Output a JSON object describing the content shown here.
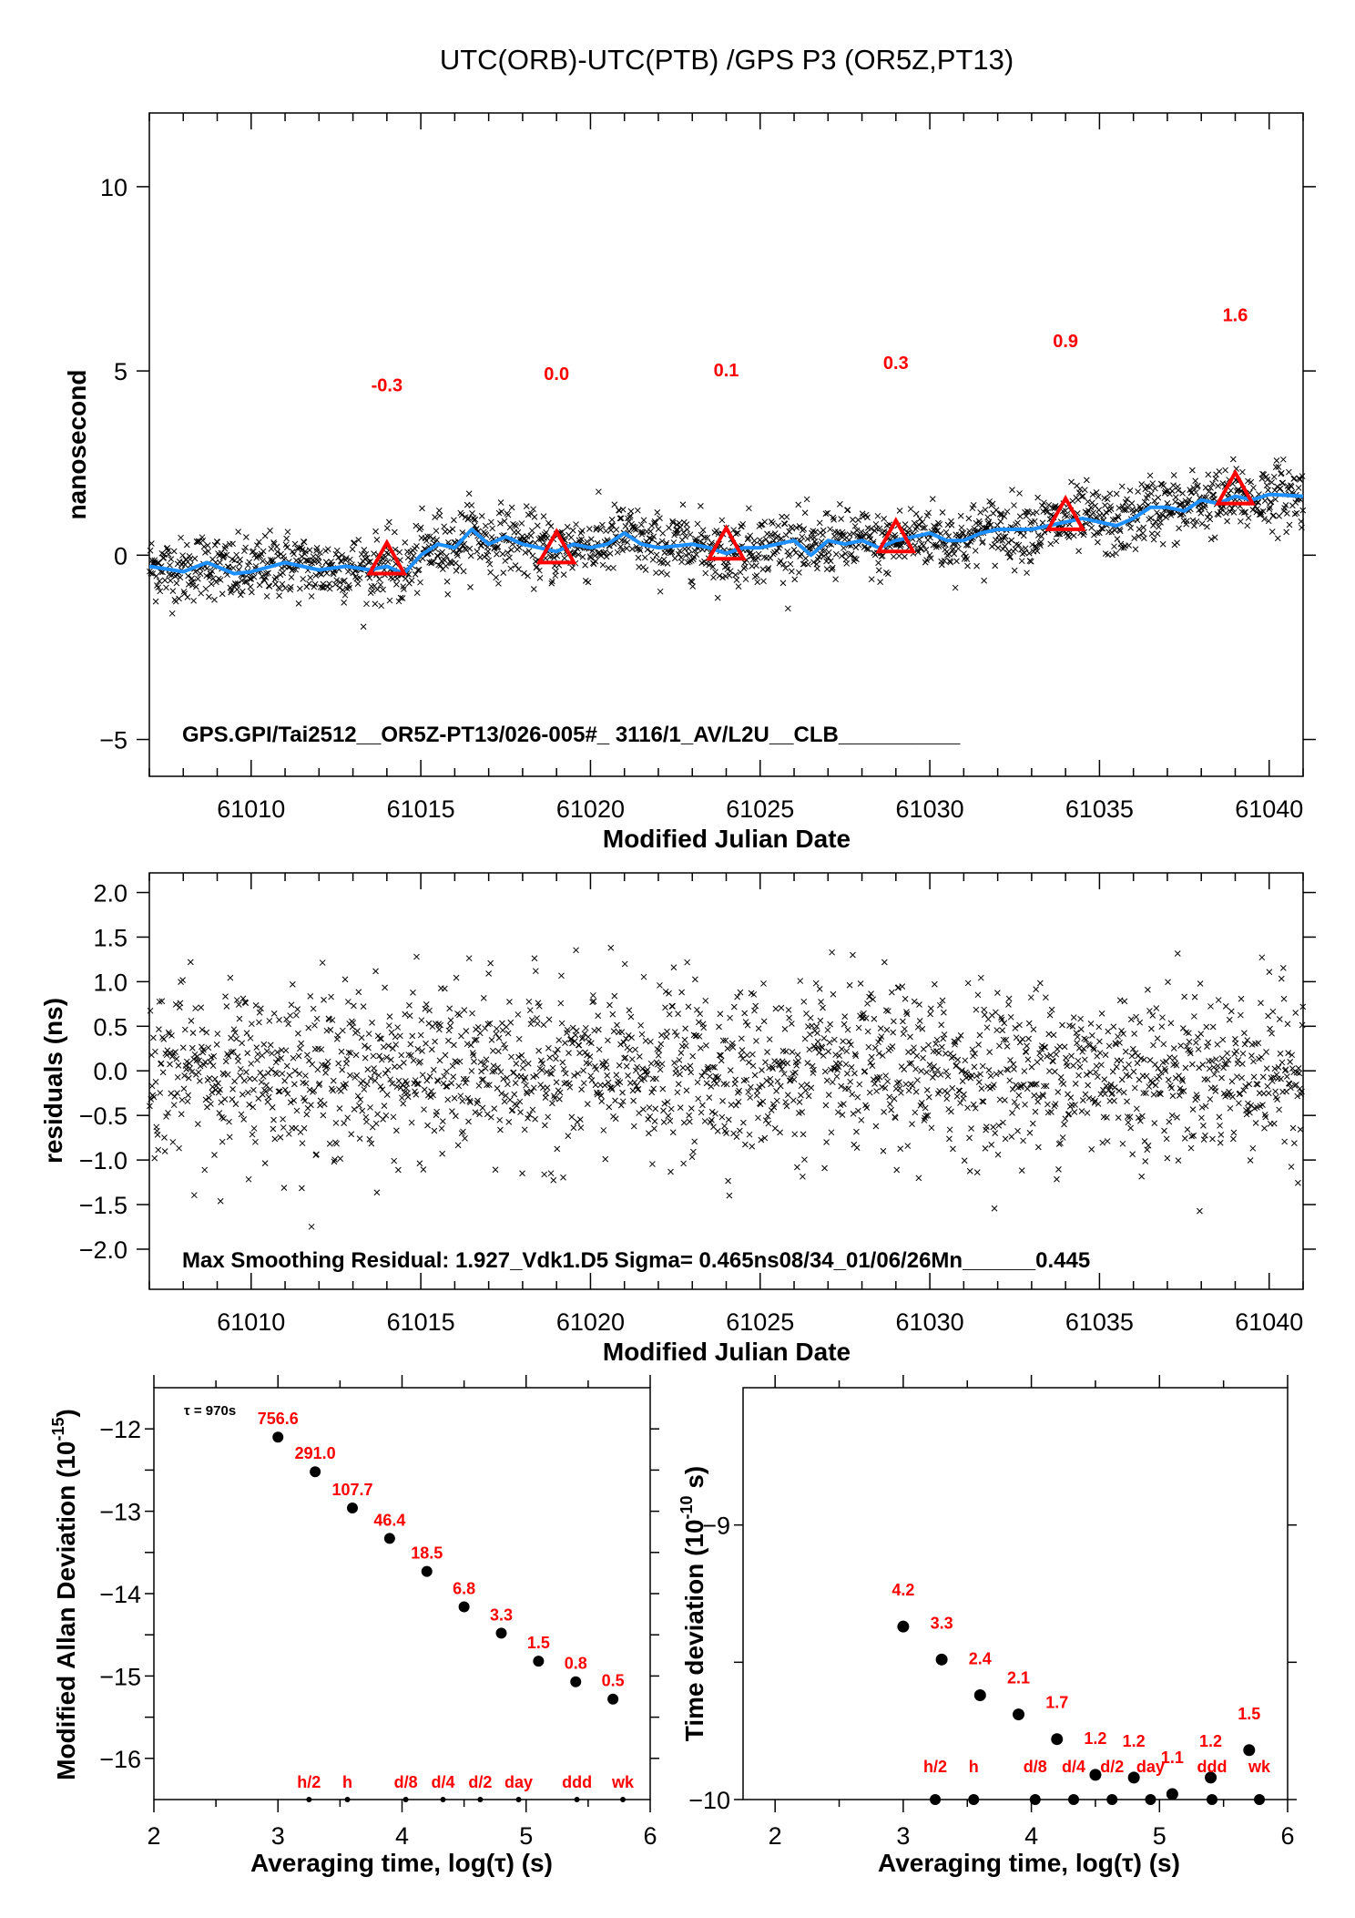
{
  "chart_data": [
    {
      "type": "scatter",
      "title": "UTC(ORB)-UTC(PTB)  /GPS  P3  (OR5Z,PT13)",
      "xlabel": "Modified Julian Date",
      "ylabel": "nanosecond",
      "xlim": [
        61007,
        61041
      ],
      "ylim": [
        -6,
        12
      ],
      "xticks": [
        "61010",
        "61015",
        "61020",
        "61025",
        "61030",
        "61035",
        "61040"
      ],
      "yticks": [
        "10",
        "5",
        "0",
        "−5"
      ],
      "annotation": "GPS.GPI/Tai2512__OR5Z-PT13/026-005#_  3116/1_AV/L2U__CLB__________",
      "noise_sigma_ns": 0.45,
      "smoothed_series": {
        "color": "#1e8fff",
        "x": [
          61007,
          61008,
          61008.7,
          61009.5,
          61010,
          61011,
          61012,
          61012.8,
          61013.5,
          61014,
          61014.5,
          61015,
          61015.5,
          61016,
          61016.5,
          61017,
          61017.5,
          61018,
          61019,
          61019.5,
          61020,
          61020.5,
          61021,
          61021.5,
          61022,
          61023,
          61023.5,
          61024,
          61024.5,
          61025,
          61026,
          61026.5,
          61027,
          61027.5,
          61028,
          61028.5,
          61029,
          61030,
          61030.5,
          61031,
          61031.5,
          61032,
          61033,
          61034,
          61034.5,
          61035,
          61035.5,
          61036,
          61036.5,
          61037,
          61037.5,
          61038,
          61038.5,
          61039,
          61039.5,
          61040,
          61041
        ],
        "y": [
          -0.3,
          -0.45,
          -0.2,
          -0.5,
          -0.45,
          -0.2,
          -0.4,
          -0.3,
          -0.4,
          -0.3,
          -0.5,
          0.0,
          0.3,
          0.2,
          0.7,
          0.3,
          0.5,
          0.3,
          0.1,
          0.3,
          0.2,
          0.3,
          0.6,
          0.3,
          0.2,
          0.3,
          0.2,
          0.05,
          0.2,
          0.2,
          0.4,
          0.0,
          0.4,
          0.3,
          0.4,
          0.2,
          0.4,
          0.6,
          0.4,
          0.4,
          0.6,
          0.7,
          0.7,
          0.9,
          1.0,
          0.9,
          0.8,
          1.0,
          1.3,
          1.3,
          1.2,
          1.5,
          1.4,
          1.6,
          1.5,
          1.65,
          1.6
        ]
      },
      "markers": [
        {
          "x": 61014,
          "y": -0.3,
          "label": "-0.3"
        },
        {
          "x": 61019,
          "y": 0.0,
          "label": "0.0"
        },
        {
          "x": 61024,
          "y": 0.1,
          "label": "0.1"
        },
        {
          "x": 61029,
          "y": 0.3,
          "label": "0.3"
        },
        {
          "x": 61034,
          "y": 0.9,
          "label": "0.9"
        },
        {
          "x": 61039,
          "y": 1.6,
          "label": "1.6"
        }
      ],
      "marker_color": "#ff0000"
    },
    {
      "type": "scatter",
      "xlabel": "Modified Julian Date",
      "ylabel": "residuals (ns)",
      "xlim": [
        61007,
        61041
      ],
      "ylim": [
        -2.45,
        2.22
      ],
      "xticks": [
        "61010",
        "61015",
        "61020",
        "61025",
        "61030",
        "61035",
        "61040"
      ],
      "yticks": [
        "2.0",
        "1.5",
        "1.0",
        "0.5",
        "0.0",
        "−0.5",
        "−1.0",
        "−1.5",
        "−2.0"
      ],
      "annotation": "Max Smoothing Residual: 1.927_Vdk1.D5  Sigma= 0.465ns08/34_01/06/26Mn______0.445",
      "noise_sigma_ns": 0.465
    },
    {
      "type": "scatter",
      "xlabel": "Averaging time, log(τ) (s)",
      "ylabel": "Modified Allan Deviation (10",
      "ylabel_exp": "-15",
      "ylabel_end": ")",
      "xlim": [
        2,
        6
      ],
      "ylim": [
        -16.5,
        -11.5
      ],
      "xticks": [
        "2",
        "3",
        "4",
        "5",
        "6"
      ],
      "yticks": [
        "−12",
        "−13",
        "−14",
        "−15",
        "−16"
      ],
      "tau_note": "τ = 970s",
      "points": [
        {
          "x": 3.0,
          "y": -12.1,
          "label": "756.6"
        },
        {
          "x": 3.3,
          "y": -12.52,
          "label": "291.0"
        },
        {
          "x": 3.6,
          "y": -12.96,
          "label": "107.7"
        },
        {
          "x": 3.9,
          "y": -13.33,
          "label": "46.4"
        },
        {
          "x": 4.2,
          "y": -13.73,
          "label": "18.5"
        },
        {
          "x": 4.5,
          "y": -14.16,
          "label": "6.8"
        },
        {
          "x": 4.8,
          "y": -14.48,
          "label": "3.3"
        },
        {
          "x": 5.1,
          "y": -14.82,
          "label": "1.5"
        },
        {
          "x": 5.4,
          "y": -15.07,
          "label": "0.8"
        },
        {
          "x": 5.7,
          "y": -15.28,
          "label": "0.5"
        }
      ],
      "interval_marks": [
        {
          "x": 3.25,
          "label": "h/2"
        },
        {
          "x": 3.56,
          "label": "h"
        },
        {
          "x": 4.03,
          "label": "d/8"
        },
        {
          "x": 4.33,
          "label": "d/4"
        },
        {
          "x": 4.63,
          "label": "d/2"
        },
        {
          "x": 4.94,
          "label": "day"
        },
        {
          "x": 5.41,
          "label": "ddd"
        },
        {
          "x": 5.78,
          "label": "wk"
        }
      ]
    },
    {
      "type": "scatter",
      "xlabel": "Averaging time, log(τ) (s)",
      "ylabel": "Time deviation (10",
      "ylabel_exp": "-10",
      "ylabel_end": " s)",
      "xlim": [
        1.75,
        6
      ],
      "ylim": [
        -10,
        -8.5
      ],
      "xticks": [
        "2",
        "3",
        "4",
        "5",
        "6"
      ],
      "yticks": [
        "−9",
        "−10"
      ],
      "points": [
        {
          "x": 3.0,
          "y": -9.37,
          "label": "4.2"
        },
        {
          "x": 3.3,
          "y": -9.49,
          "label": "3.3"
        },
        {
          "x": 3.6,
          "y": -9.62,
          "label": "2.4"
        },
        {
          "x": 3.9,
          "y": -9.69,
          "label": "2.1"
        },
        {
          "x": 4.2,
          "y": -9.78,
          "label": "1.7"
        },
        {
          "x": 4.5,
          "y": -9.91,
          "label": "1.2"
        },
        {
          "x": 4.8,
          "y": -9.92,
          "label": "1.2"
        },
        {
          "x": 5.1,
          "y": -9.98,
          "label": "1.1"
        },
        {
          "x": 5.4,
          "y": -9.92,
          "label": "1.2"
        },
        {
          "x": 5.7,
          "y": -9.82,
          "label": "1.5"
        }
      ],
      "interval_marks": [
        {
          "x": 3.25,
          "label": "h/2"
        },
        {
          "x": 3.55,
          "label": "h"
        },
        {
          "x": 4.03,
          "label": "d/8"
        },
        {
          "x": 4.33,
          "label": "d/4"
        },
        {
          "x": 4.63,
          "label": "d/2"
        },
        {
          "x": 4.93,
          "label": "day"
        },
        {
          "x": 5.41,
          "label": "ddd"
        },
        {
          "x": 5.78,
          "label": "wk"
        }
      ]
    }
  ]
}
